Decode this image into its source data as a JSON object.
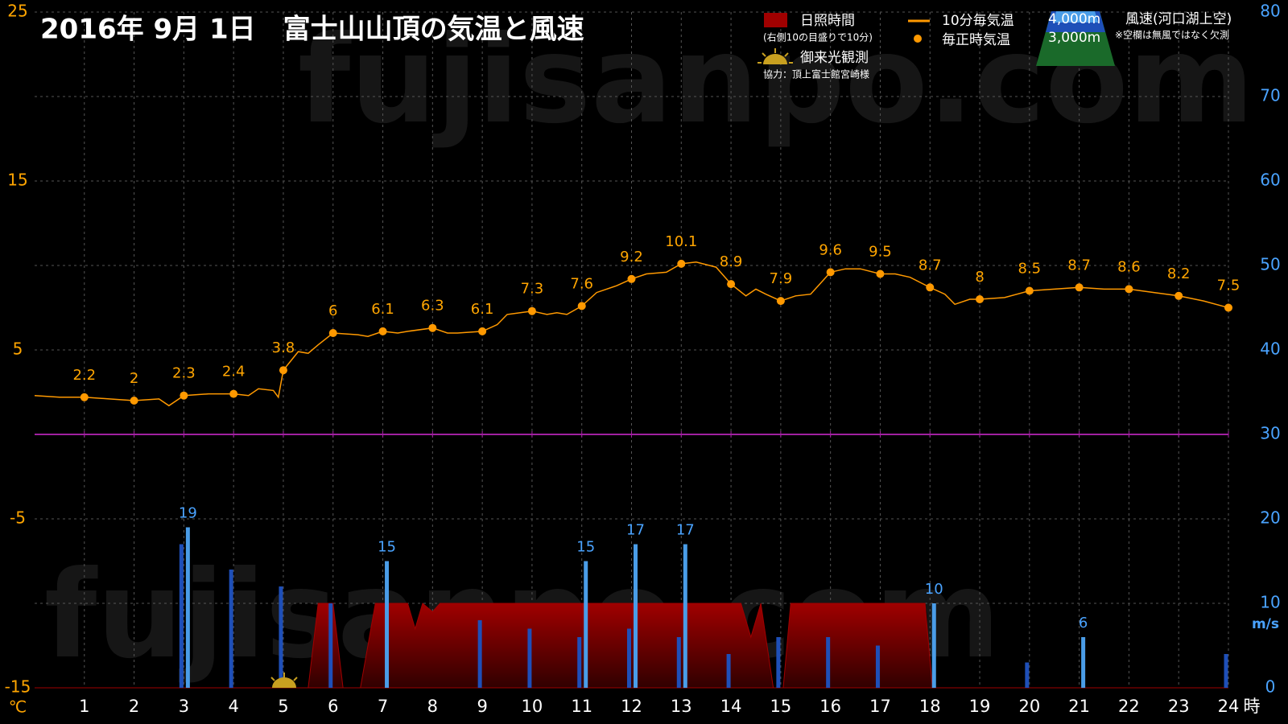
{
  "chart_data": {
    "type": "line",
    "title": "2016年  9月  1日　富士山山頂の気温と風速",
    "watermark": "fujisanpo.com",
    "y_unit": "℃",
    "y2_unit": "m/s",
    "x_unit": "時",
    "legend_notes": {
      "sunshine_note": "(右側10の目盛りで10分)",
      "sunrise": "御来光観測",
      "credit": "協力：頂上富士館宮崎様",
      "wind_title": "風速(河口湖上空)",
      "wind_note": "※空欄は無風ではなく欠測"
    },
    "xlim": [
      0,
      24
    ],
    "xticks": [
      1,
      2,
      3,
      4,
      5,
      6,
      7,
      8,
      9,
      10,
      11,
      12,
      13,
      14,
      15,
      16,
      17,
      18,
      19,
      20,
      21,
      22,
      23,
      24
    ],
    "ylim": [
      -15,
      25
    ],
    "yticks": [
      25,
      15,
      5,
      -5,
      -15
    ],
    "y2lim": [
      0,
      80
    ],
    "y2ticks": [
      0,
      10,
      20,
      30,
      40,
      50,
      60,
      70,
      80
    ],
    "grid": true,
    "series": [
      {
        "name": "日照時間",
        "type": "area",
        "axis": "y2",
        "color": "#a00000",
        "x": [
          0,
          5.5,
          5.7,
          6.0,
          6.2,
          6.55,
          6.85,
          7.5,
          7.65,
          7.8,
          8.0,
          8.15,
          14.2,
          14.4,
          14.6,
          14.85,
          15.05,
          15.2,
          17.9,
          18.05,
          24
        ],
        "values": [
          0,
          0,
          10,
          10,
          0,
          0,
          10,
          10,
          7,
          10,
          9,
          10,
          10,
          6,
          10,
          0,
          0,
          10,
          10,
          0,
          0
        ]
      },
      {
        "name": "4,000m",
        "type": "bar",
        "axis": "y2",
        "color": "#4a9de8",
        "offset": 5,
        "x": [
          1,
          2,
          3,
          4,
          5,
          6,
          7,
          8,
          9,
          10,
          11,
          12,
          13,
          14,
          15,
          16,
          17,
          18,
          19,
          20,
          21,
          22,
          23,
          24
        ],
        "values": [
          null,
          null,
          19,
          null,
          null,
          null,
          15,
          null,
          null,
          null,
          15,
          17,
          17,
          null,
          null,
          null,
          null,
          10,
          null,
          null,
          6,
          null,
          null,
          null
        ]
      },
      {
        "name": "3,000m",
        "type": "bar",
        "axis": "y2",
        "color": "#1e4fb8",
        "offset": -3,
        "x": [
          1,
          2,
          3,
          4,
          5,
          6,
          7,
          8,
          9,
          10,
          11,
          12,
          13,
          14,
          15,
          16,
          17,
          18,
          19,
          20,
          21,
          22,
          23,
          24
        ],
        "values": [
          null,
          null,
          17,
          14,
          12,
          10,
          null,
          null,
          8,
          7,
          6,
          7,
          6,
          4,
          6,
          6,
          5,
          null,
          null,
          3,
          null,
          null,
          null,
          4
        ]
      },
      {
        "name": "10分毎気温",
        "type": "line",
        "color": "#ff9900",
        "x": [
          0,
          0.5,
          1,
          1.5,
          2,
          2.5,
          2.7,
          3,
          3.5,
          4,
          4.3,
          4.5,
          4.8,
          4.9,
          5,
          5.3,
          5.5,
          5.7,
          6,
          6.5,
          6.7,
          7,
          7.3,
          7.5,
          8,
          8.3,
          8.5,
          9,
          9.3,
          9.5,
          10,
          10.3,
          10.5,
          10.7,
          11,
          11.3,
          11.7,
          12,
          12.3,
          12.7,
          13,
          13.3,
          13.7,
          14,
          14.3,
          14.5,
          14.7,
          15,
          15.3,
          15.6,
          16,
          16.3,
          16.6,
          17,
          17.3,
          17.6,
          18,
          18.3,
          18.5,
          18.8,
          19,
          19.5,
          20,
          20.5,
          21,
          21.5,
          22,
          22.5,
          23,
          23.5,
          24
        ],
        "values": [
          2.3,
          2.2,
          2.2,
          2.1,
          2.0,
          2.1,
          1.7,
          2.3,
          2.4,
          2.4,
          2.3,
          2.7,
          2.6,
          2.2,
          3.8,
          4.9,
          4.8,
          5.3,
          6,
          5.9,
          5.8,
          6.1,
          6.0,
          6.1,
          6.3,
          6.0,
          6.0,
          6.1,
          6.5,
          7.1,
          7.3,
          7.1,
          7.2,
          7.1,
          7.6,
          8.4,
          8.8,
          9.2,
          9.5,
          9.6,
          10.1,
          10.2,
          9.9,
          8.9,
          8.2,
          8.6,
          8.3,
          7.9,
          8.2,
          8.3,
          9.6,
          9.8,
          9.8,
          9.5,
          9.5,
          9.3,
          8.7,
          8.3,
          7.7,
          8.0,
          8.0,
          8.1,
          8.5,
          8.6,
          8.7,
          8.6,
          8.6,
          8.4,
          8.2,
          7.9,
          7.5
        ]
      },
      {
        "name": "毎正時気温",
        "type": "scatter",
        "color": "#ff9900",
        "x": [
          1,
          2,
          3,
          4,
          5,
          6,
          7,
          8,
          9,
          10,
          11,
          12,
          13,
          14,
          15,
          16,
          17,
          18,
          19,
          20,
          21,
          22,
          23,
          24
        ],
        "values": [
          2.2,
          2,
          2.3,
          2.4,
          3.8,
          6,
          6.1,
          6.3,
          6.1,
          7.3,
          7.6,
          9.2,
          10.1,
          8.9,
          7.9,
          9.6,
          9.5,
          8.7,
          8,
          8.5,
          8.7,
          8.6,
          8.2,
          7.5
        ]
      }
    ]
  }
}
